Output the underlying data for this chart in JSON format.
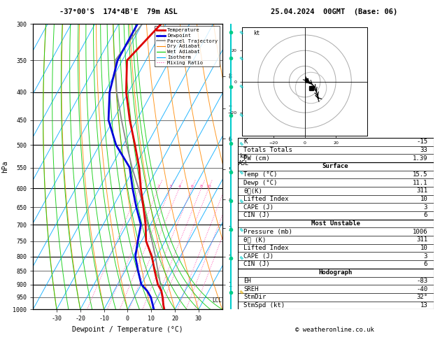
{
  "title_left": "-37°00'S  174°4B'E  79m ASL",
  "title_right": "25.04.2024  00GMT  (Base: 06)",
  "xlabel": "Dewpoint / Temperature (°C)",
  "ylabel_left": "hPa",
  "pressure_levels": [
    300,
    350,
    400,
    450,
    500,
    550,
    600,
    650,
    700,
    750,
    800,
    850,
    900,
    950,
    1000
  ],
  "temp_range": [
    -40,
    40
  ],
  "isotherm_color": "#00aaff",
  "dry_adiabat_color": "#ff8800",
  "wet_adiabat_color": "#00cc00",
  "mixing_ratio_color": "#ff44aa",
  "temp_profile_color": "#dd0000",
  "dewp_profile_color": "#0000dd",
  "parcel_color": "#888888",
  "lcl_label": "LCL",
  "legend_items": [
    {
      "label": "Temperature",
      "color": "#dd0000",
      "lw": 2.0,
      "ls": "-"
    },
    {
      "label": "Dewpoint",
      "color": "#0000dd",
      "lw": 2.0,
      "ls": "-"
    },
    {
      "label": "Parcel Trajectory",
      "color": "#888888",
      "lw": 1.2,
      "ls": "-"
    },
    {
      "label": "Dry Adiabat",
      "color": "#ff8800",
      "lw": 0.8,
      "ls": "-"
    },
    {
      "label": "Wet Adiabat",
      "color": "#00cc00",
      "lw": 0.8,
      "ls": "-"
    },
    {
      "label": "Isotherm",
      "color": "#00aaff",
      "lw": 0.8,
      "ls": "-"
    },
    {
      "label": "Mixing Ratio",
      "color": "#ff44aa",
      "lw": 0.8,
      "ls": ":"
    }
  ],
  "mixing_ratio_values": [
    1,
    2,
    3,
    4,
    6,
    8,
    10,
    16,
    20,
    25
  ],
  "km_ticks": [
    1,
    2,
    3,
    4,
    5,
    6,
    7,
    8
  ],
  "km_pressures": [
    900,
    802,
    710,
    628,
    554,
    487,
    428,
    374
  ],
  "lcl_pressure": 963,
  "stats_lines": [
    [
      "K",
      "-15"
    ],
    [
      "Totals Totals",
      "33"
    ],
    [
      "PW (cm)",
      "1.39"
    ]
  ],
  "surface_lines": [
    [
      "Temp (°C)",
      "15.5"
    ],
    [
      "Dewp (°C)",
      "11.1"
    ],
    [
      "θᴇ(K)",
      "311"
    ],
    [
      "Lifted Index",
      "10"
    ],
    [
      "CAPE (J)",
      "3"
    ],
    [
      "CIN (J)",
      "6"
    ]
  ],
  "unstable_title": "Most Unstable",
  "unstable_lines": [
    [
      "Pressure (mb)",
      "1006"
    ],
    [
      "θᴇ (K)",
      "311"
    ],
    [
      "Lifted Index",
      "10"
    ],
    [
      "CAPE (J)",
      "3"
    ],
    [
      "CIN (J)",
      "6"
    ]
  ],
  "hodograph_title": "Hodograph",
  "hodograph_lines": [
    [
      "EH",
      "-83"
    ],
    [
      "SREH",
      "-40"
    ],
    [
      "StmDir",
      "32°"
    ],
    [
      "StmSpd (kt)",
      "13"
    ]
  ],
  "footer": "© weatheronline.co.uk",
  "temp_data_p": [
    1000,
    980,
    950,
    925,
    900,
    850,
    800,
    750,
    700,
    650,
    600,
    550,
    500,
    450,
    400,
    350,
    300
  ],
  "temp_data_t": [
    15.5,
    14.0,
    12.0,
    10.0,
    7.0,
    2.5,
    -2.0,
    -8.0,
    -12.0,
    -17.0,
    -22.5,
    -28.0,
    -35.0,
    -43.0,
    -51.0,
    -58.0,
    -52.0
  ],
  "dewp_data_p": [
    1000,
    980,
    950,
    925,
    900,
    850,
    800,
    750,
    700,
    650,
    600,
    550,
    500,
    450,
    400,
    350,
    300
  ],
  "dewp_data_t": [
    11.1,
    9.5,
    7.0,
    4.0,
    0.0,
    -4.5,
    -9.0,
    -11.5,
    -14.0,
    -20.0,
    -26.0,
    -32.0,
    -43.0,
    -52.0,
    -58.0,
    -62.0,
    -62.0
  ],
  "parcel_data_p": [
    1000,
    960,
    920,
    880,
    840,
    800,
    750,
    700,
    650,
    600,
    550,
    500,
    450,
    400,
    350,
    300
  ],
  "parcel_data_t": [
    15.5,
    12.5,
    9.5,
    6.5,
    3.0,
    -0.5,
    -5.5,
    -11.0,
    -17.0,
    -23.5,
    -31.0,
    -38.5,
    -46.5,
    -55.0,
    -63.0,
    -60.0
  ],
  "hodo_u": [
    1,
    2,
    4,
    6,
    7,
    8,
    9,
    7
  ],
  "hodo_v": [
    1,
    0,
    -1,
    -3,
    -5,
    -8,
    -11,
    -9
  ],
  "cyan_line_color": "#00cccc",
  "cyan_dot_color": "#00cc88",
  "wind_barb_color": "#00cccc",
  "wind_barb_last_color": "#ddaa00"
}
